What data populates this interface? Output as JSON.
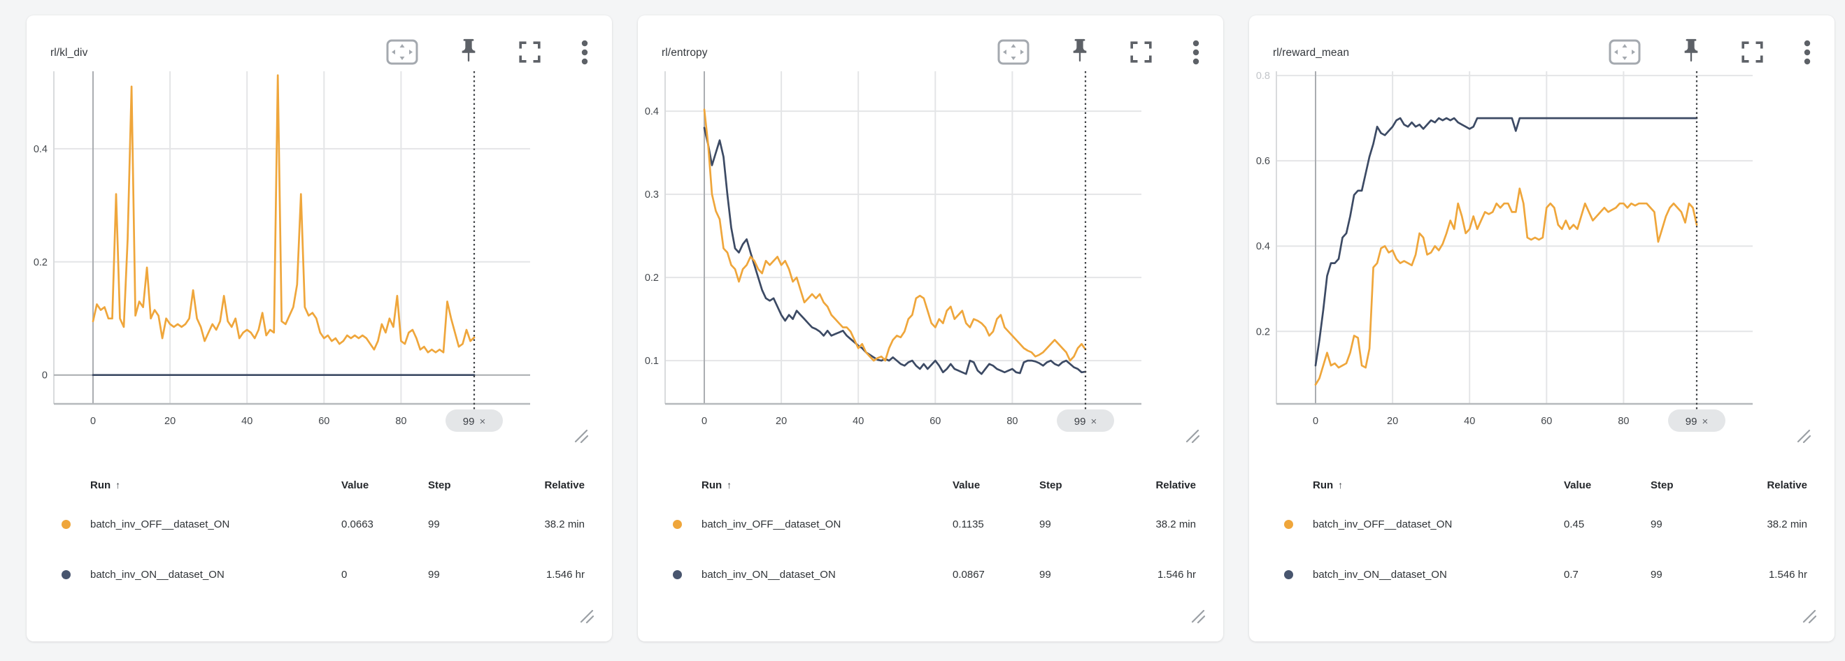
{
  "page": {
    "background": "#f4f5f6"
  },
  "colors": {
    "orange": "#EFA63B",
    "navy": "#3C4A64",
    "navy_dot": "#48556E",
    "grid_light": "#e4e5e7",
    "grid_strong": "#aaadb1",
    "plot_border": "#d9dbdd",
    "axis_bottom": "#b6b9bc",
    "marker_line": "#3e4144",
    "pill_bg": "#e4e6e8",
    "tick_text": "#43474c",
    "icon_gray": "#a4a9af",
    "icon_dark": "#5d6167"
  },
  "panels": [
    {
      "title": "rl/kl_div",
      "toolbar": {
        "icons": [
          "viewport-pan",
          "pin",
          "fullscreen",
          "kebab-menu"
        ]
      },
      "legend": {
        "headers": {
          "run": "Run",
          "sort": "↑",
          "value": "Value",
          "step": "Step",
          "relative": "Relative"
        },
        "rows": [
          {
            "name": "batch_inv_OFF__dataset_ON",
            "value": "0.0663",
            "step": "99",
            "relative": "38.2 min",
            "color": "#EFA63B"
          },
          {
            "name": "batch_inv_ON__dataset_ON",
            "value": "0",
            "step": "99",
            "relative": "1.546 hr",
            "color": "#48556E"
          }
        ]
      }
    },
    {
      "title": "rl/entropy",
      "toolbar": {
        "icons": [
          "viewport-pan",
          "pin",
          "fullscreen",
          "kebab-menu"
        ]
      },
      "legend": {
        "headers": {
          "run": "Run",
          "sort": "↑",
          "value": "Value",
          "step": "Step",
          "relative": "Relative"
        },
        "rows": [
          {
            "name": "batch_inv_OFF__dataset_ON",
            "value": "0.1135",
            "step": "99",
            "relative": "38.2 min",
            "color": "#EFA63B"
          },
          {
            "name": "batch_inv_ON__dataset_ON",
            "value": "0.0867",
            "step": "99",
            "relative": "1.546 hr",
            "color": "#48556E"
          }
        ]
      }
    },
    {
      "title": "rl/reward_mean",
      "toolbar": {
        "icons": [
          "viewport-pan",
          "pin",
          "fullscreen",
          "kebab-menu"
        ]
      },
      "legend": {
        "headers": {
          "run": "Run",
          "sort": "↑",
          "value": "Value",
          "step": "Step",
          "relative": "Relative"
        },
        "rows": [
          {
            "name": "batch_inv_OFF__dataset_ON",
            "value": "0.45",
            "step": "99",
            "relative": "38.2 min",
            "color": "#EFA63B"
          },
          {
            "name": "batch_inv_ON__dataset_ON",
            "value": "0.7",
            "step": "99",
            "relative": "1.546 hr",
            "color": "#48556E"
          }
        ]
      }
    }
  ],
  "chart_data": [
    {
      "type": "line",
      "title": "rl/kl_div",
      "x_ticks": [
        0,
        20,
        40,
        60,
        80
      ],
      "y_ticks": [
        0,
        0.2,
        0.4
      ],
      "y_zero_line": 0,
      "xlim": [
        -10.2,
        113.5
      ],
      "ylim": [
        -0.051,
        0.537
      ],
      "marker_x": 99,
      "marker_label": "99",
      "marker_close": "×",
      "series": [
        {
          "name": "batch_inv_OFF__dataset_ON",
          "color": "#EFA63B",
          "values": [
            0.095,
            0.125,
            0.115,
            0.12,
            0.1,
            0.1,
            0.32,
            0.1,
            0.085,
            0.24,
            0.51,
            0.105,
            0.13,
            0.12,
            0.19,
            0.1,
            0.115,
            0.105,
            0.065,
            0.1,
            0.09,
            0.085,
            0.09,
            0.085,
            0.09,
            0.1,
            0.15,
            0.1,
            0.085,
            0.06,
            0.075,
            0.09,
            0.08,
            0.095,
            0.14,
            0.095,
            0.085,
            0.1,
            0.065,
            0.075,
            0.08,
            0.075,
            0.065,
            0.08,
            0.11,
            0.07,
            0.08,
            0.075,
            0.53,
            0.095,
            0.09,
            0.105,
            0.12,
            0.16,
            0.32,
            0.12,
            0.105,
            0.11,
            0.1,
            0.075,
            0.065,
            0.07,
            0.06,
            0.065,
            0.055,
            0.06,
            0.07,
            0.065,
            0.07,
            0.065,
            0.07,
            0.065,
            0.055,
            0.045,
            0.06,
            0.09,
            0.075,
            0.1,
            0.085,
            0.14,
            0.06,
            0.055,
            0.075,
            0.08,
            0.065,
            0.045,
            0.05,
            0.04,
            0.045,
            0.04,
            0.045,
            0.04,
            0.13,
            0.1,
            0.075,
            0.05,
            0.055,
            0.08,
            0.06,
            0.0663
          ]
        },
        {
          "name": "batch_inv_ON__dataset_ON",
          "color": "#3C4A64",
          "values": [
            0,
            0,
            0,
            0,
            0,
            0,
            0,
            0,
            0,
            0,
            0,
            0,
            0,
            0,
            0,
            0,
            0,
            0,
            0,
            0,
            0,
            0,
            0,
            0,
            0,
            0,
            0,
            0,
            0,
            0,
            0,
            0,
            0,
            0,
            0,
            0,
            0,
            0,
            0,
            0,
            0,
            0,
            0,
            0,
            0,
            0,
            0,
            0,
            0,
            0,
            0,
            0,
            0,
            0,
            0,
            0,
            0,
            0,
            0,
            0,
            0,
            0,
            0,
            0,
            0,
            0,
            0,
            0,
            0,
            0,
            0,
            0,
            0,
            0,
            0,
            0,
            0,
            0,
            0,
            0,
            0,
            0,
            0,
            0,
            0,
            0,
            0,
            0,
            0,
            0,
            0,
            0,
            0,
            0,
            0,
            0,
            0,
            0,
            0,
            0
          ]
        }
      ]
    },
    {
      "type": "line",
      "title": "rl/entropy",
      "x_ticks": [
        0,
        20,
        40,
        60,
        80
      ],
      "y_ticks": [
        0.1,
        0.2,
        0.3,
        0.4
      ],
      "xlim": [
        -10.2,
        113.5
      ],
      "ylim": [
        0.048,
        0.448
      ],
      "marker_x": 99,
      "marker_label": "99",
      "marker_close": "×",
      "series": [
        {
          "name": "batch_inv_OFF__dataset_ON",
          "color": "#EFA63B",
          "values": [
            0.402,
            0.36,
            0.3,
            0.28,
            0.27,
            0.235,
            0.23,
            0.215,
            0.21,
            0.195,
            0.21,
            0.215,
            0.225,
            0.22,
            0.21,
            0.205,
            0.22,
            0.215,
            0.22,
            0.225,
            0.215,
            0.22,
            0.21,
            0.195,
            0.2,
            0.185,
            0.17,
            0.175,
            0.18,
            0.175,
            0.18,
            0.17,
            0.165,
            0.155,
            0.15,
            0.145,
            0.14,
            0.14,
            0.135,
            0.125,
            0.115,
            0.12,
            0.11,
            0.105,
            0.1,
            0.103,
            0.105,
            0.1,
            0.115,
            0.125,
            0.13,
            0.128,
            0.135,
            0.15,
            0.155,
            0.175,
            0.178,
            0.175,
            0.16,
            0.145,
            0.14,
            0.15,
            0.145,
            0.16,
            0.165,
            0.15,
            0.155,
            0.16,
            0.145,
            0.14,
            0.15,
            0.148,
            0.145,
            0.14,
            0.13,
            0.135,
            0.15,
            0.155,
            0.14,
            0.135,
            0.13,
            0.125,
            0.12,
            0.115,
            0.112,
            0.11,
            0.105,
            0.107,
            0.11,
            0.115,
            0.12,
            0.125,
            0.12,
            0.115,
            0.11,
            0.1,
            0.105,
            0.115,
            0.12,
            0.1135
          ]
        },
        {
          "name": "batch_inv_ON__dataset_ON",
          "color": "#3C4A64",
          "values": [
            0.38,
            0.36,
            0.335,
            0.35,
            0.365,
            0.345,
            0.3,
            0.26,
            0.235,
            0.23,
            0.24,
            0.246,
            0.23,
            0.215,
            0.2,
            0.185,
            0.175,
            0.172,
            0.175,
            0.165,
            0.155,
            0.148,
            0.155,
            0.15,
            0.16,
            0.155,
            0.15,
            0.145,
            0.14,
            0.138,
            0.135,
            0.13,
            0.136,
            0.13,
            0.132,
            0.134,
            0.136,
            0.13,
            0.126,
            0.122,
            0.118,
            0.115,
            0.11,
            0.107,
            0.104,
            0.101,
            0.1,
            0.102,
            0.1,
            0.104,
            0.1,
            0.096,
            0.094,
            0.098,
            0.1,
            0.094,
            0.09,
            0.096,
            0.09,
            0.095,
            0.1,
            0.094,
            0.086,
            0.09,
            0.096,
            0.09,
            0.088,
            0.086,
            0.084,
            0.1,
            0.098,
            0.088,
            0.084,
            0.09,
            0.096,
            0.094,
            0.09,
            0.088,
            0.086,
            0.088,
            0.09,
            0.086,
            0.085,
            0.098,
            0.1,
            0.1,
            0.099,
            0.097,
            0.094,
            0.098,
            0.1,
            0.096,
            0.094,
            0.098,
            0.1,
            0.096,
            0.092,
            0.09,
            0.086,
            0.0867
          ]
        }
      ]
    },
    {
      "type": "line",
      "title": "rl/reward_mean",
      "x_ticks": [
        0,
        20,
        40,
        60,
        80
      ],
      "y_ticks": [
        0.2,
        0.4,
        0.6,
        0.8
      ],
      "y_ticks_faded": [
        0.8
      ],
      "xlim": [
        -10.2,
        113.5
      ],
      "ylim": [
        0.03,
        0.81
      ],
      "marker_x": 99,
      "marker_label": "99",
      "marker_close": "×",
      "series": [
        {
          "name": "batch_inv_OFF__dataset_ON",
          "color": "#EFA63B",
          "values": [
            0.075,
            0.09,
            0.12,
            0.15,
            0.12,
            0.125,
            0.115,
            0.12,
            0.125,
            0.15,
            0.19,
            0.185,
            0.12,
            0.115,
            0.16,
            0.35,
            0.36,
            0.395,
            0.4,
            0.385,
            0.39,
            0.37,
            0.36,
            0.365,
            0.36,
            0.355,
            0.38,
            0.43,
            0.42,
            0.38,
            0.385,
            0.4,
            0.39,
            0.405,
            0.43,
            0.46,
            0.44,
            0.5,
            0.47,
            0.43,
            0.44,
            0.47,
            0.44,
            0.46,
            0.48,
            0.475,
            0.48,
            0.5,
            0.49,
            0.5,
            0.5,
            0.48,
            0.48,
            0.535,
            0.5,
            0.42,
            0.415,
            0.42,
            0.415,
            0.42,
            0.49,
            0.5,
            0.49,
            0.45,
            0.44,
            0.46,
            0.44,
            0.45,
            0.44,
            0.47,
            0.5,
            0.48,
            0.46,
            0.47,
            0.48,
            0.49,
            0.48,
            0.485,
            0.49,
            0.5,
            0.5,
            0.49,
            0.5,
            0.495,
            0.5,
            0.5,
            0.5,
            0.49,
            0.48,
            0.41,
            0.44,
            0.47,
            0.49,
            0.5,
            0.49,
            0.48,
            0.455,
            0.5,
            0.49,
            0.45
          ]
        },
        {
          "name": "batch_inv_ON__dataset_ON",
          "color": "#3C4A64",
          "values": [
            0.12,
            0.18,
            0.25,
            0.33,
            0.36,
            0.36,
            0.37,
            0.42,
            0.43,
            0.47,
            0.52,
            0.53,
            0.53,
            0.57,
            0.61,
            0.64,
            0.68,
            0.665,
            0.66,
            0.67,
            0.68,
            0.695,
            0.7,
            0.685,
            0.68,
            0.69,
            0.68,
            0.685,
            0.675,
            0.685,
            0.695,
            0.69,
            0.7,
            0.695,
            0.7,
            0.695,
            0.7,
            0.69,
            0.685,
            0.68,
            0.675,
            0.68,
            0.7,
            0.7,
            0.7,
            0.7,
            0.7,
            0.7,
            0.7,
            0.7,
            0.7,
            0.7,
            0.67,
            0.7,
            0.7,
            0.7,
            0.7,
            0.7,
            0.7,
            0.7,
            0.7,
            0.7,
            0.7,
            0.7,
            0.7,
            0.7,
            0.7,
            0.7,
            0.7,
            0.7,
            0.7,
            0.7,
            0.7,
            0.7,
            0.7,
            0.7,
            0.7,
            0.7,
            0.7,
            0.7,
            0.7,
            0.7,
            0.7,
            0.7,
            0.7,
            0.7,
            0.7,
            0.7,
            0.7,
            0.7,
            0.7,
            0.7,
            0.7,
            0.7,
            0.7,
            0.7,
            0.7,
            0.7,
            0.7,
            0.7
          ]
        }
      ]
    }
  ]
}
